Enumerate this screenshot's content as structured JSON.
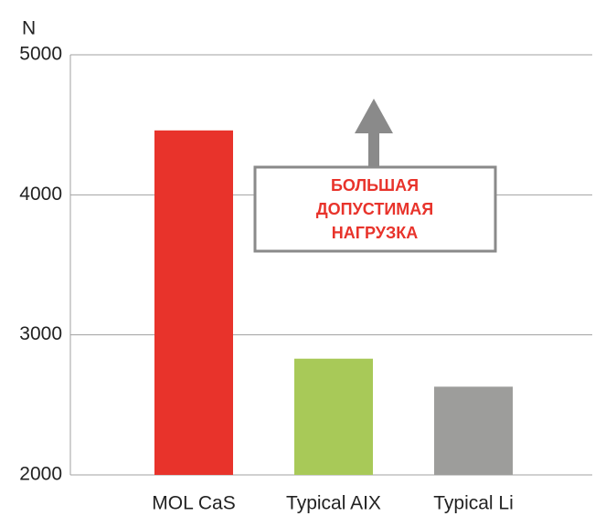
{
  "chart_data": {
    "type": "bar",
    "ylabel": "N",
    "categories": [
      "MOL CaS",
      "Typical AIX",
      "Typical Li"
    ],
    "values": [
      4460,
      2830,
      2630
    ],
    "colors": [
      "#e8332b",
      "#a8c958",
      "#9d9d9b"
    ],
    "ylim": [
      2000,
      5000
    ],
    "yticks": [
      2000,
      3000,
      4000,
      5000
    ],
    "grid": true,
    "annotation": [
      "БОЛЬШАЯ",
      "ДОПУСТИМАЯ",
      "НАГРУЗКА"
    ]
  }
}
